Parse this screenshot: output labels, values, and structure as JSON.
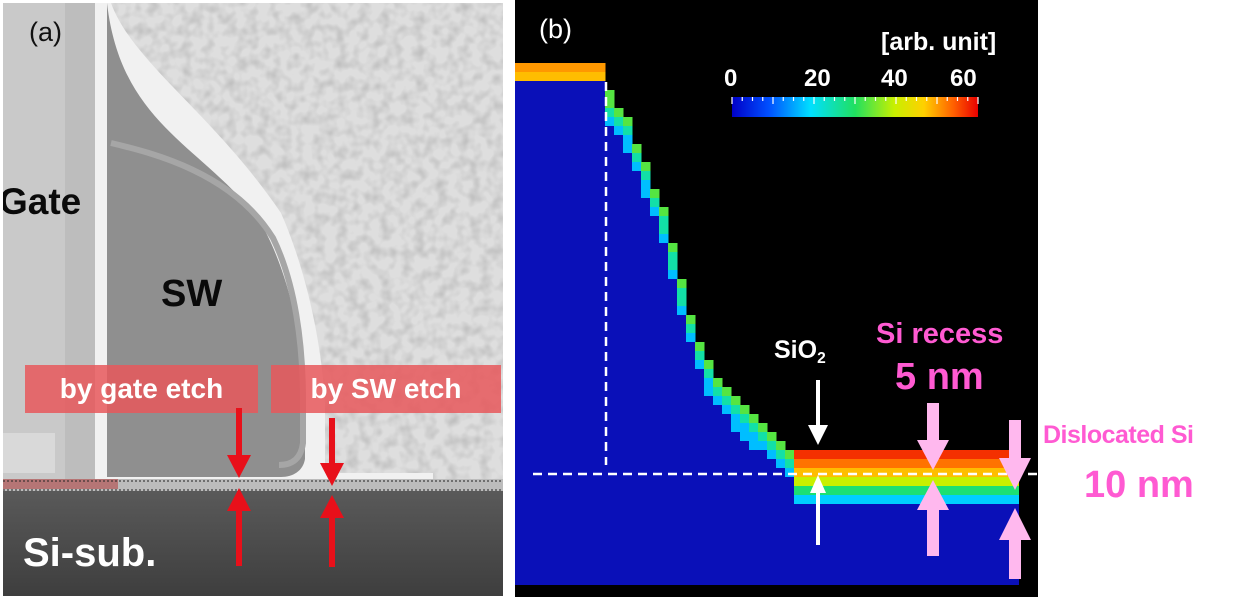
{
  "panel_a": {
    "label": "(a)",
    "gate_label": "Gate",
    "sw_label": "SW",
    "sub_label": "Si-sub.",
    "box_gate_etch": "by gate etch",
    "box_sw_etch": "by SW etch",
    "colors": {
      "banner": "#e8585c",
      "arrow": "#e8101a",
      "substrate": "#4e4e4e",
      "sidewall": "#8f8f8f"
    }
  },
  "panel_b": {
    "label": "(b)",
    "colorbar": {
      "unit": "[arb. unit]",
      "ticks": [
        "0",
        "20",
        "40",
        "60"
      ],
      "tick_values": [
        0,
        20,
        40,
        60
      ],
      "range": [
        0,
        62
      ],
      "colormap": "jet"
    },
    "sio2_label": "SiO",
    "sio2_subscript": "2",
    "recess_title": "Si recess",
    "recess_value": "5 nm",
    "colors": {
      "background": "#000000",
      "bulk": "#0a10b8",
      "annotation": "#ff5ad2",
      "arrow": "#ffb8ee"
    }
  },
  "dislocated": {
    "title": "Dislocated Si",
    "value": "10 nm"
  }
}
